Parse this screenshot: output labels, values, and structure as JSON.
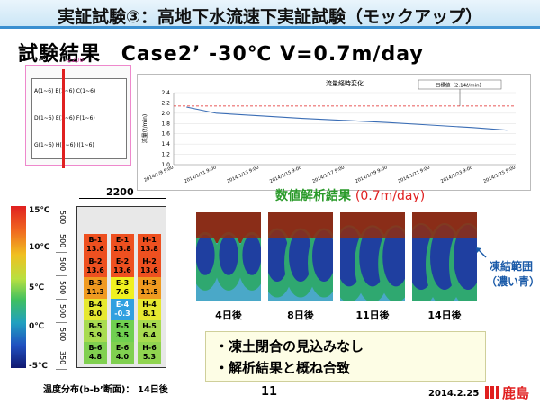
{
  "header": {
    "title": "実証試験③：高地下水流速下実証試験（モックアップ）",
    "subtitle_prefix": "試験結果",
    "subtitle_case": "Case2’  -30℃  V=0.7m/day"
  },
  "plan": {
    "width_label": "2200",
    "rows": [
      "A(1~6) B(1~6) C(1~6)",
      "D(1~6) E(1~6) F(1~6)",
      "G(1~6) H(1~6) I(1~6)"
    ]
  },
  "chart_data": {
    "type": "line",
    "title": "流量経時変化",
    "ylabel": "流量(ℓ/min)",
    "ylim": [
      1.0,
      2.4
    ],
    "yticks": [
      "2.4",
      "2.2",
      "2.0",
      "1.8",
      "1.6",
      "1.4",
      "1.2",
      "1.0"
    ],
    "xticks": [
      "2014/1/9 9:00",
      "2014/1/11 9:00",
      "2014/1/13 9:00",
      "2014/1/15 9:00",
      "2014/1/17 9:00",
      "2014/1/19 9:00",
      "2014/1/21 9:00",
      "2014/1/23 9:00",
      "2014/1/25 9:00"
    ],
    "target_label": "目標値（2.14ℓ/min）",
    "target_value": 2.14,
    "series": [
      {
        "x_index": [
          0.3,
          1,
          2,
          3,
          4,
          5,
          6,
          7,
          7.8
        ],
        "values": [
          2.12,
          2.0,
          1.95,
          1.9,
          1.86,
          1.82,
          1.77,
          1.72,
          1.67
        ]
      }
    ],
    "colors": {
      "line": "#3a6db5",
      "target": "#e02020"
    }
  },
  "analysis": {
    "title_part": "数値解析結果",
    "title_speed": "(0.7m/day)",
    "days": [
      "4日後",
      "8日後",
      "11日後",
      "14日後"
    ],
    "frozen_label_1": "凍結範囲",
    "frozen_label_2": "（濃い青）"
  },
  "temperature": {
    "width_label": "2200",
    "caption": "温度分布(b-b’断面)： 14日後",
    "legend": [
      "15℃",
      "10℃",
      "5℃",
      "0℃",
      "-5℃"
    ],
    "depths": [
      "500",
      "500",
      "500",
      "500",
      "500",
      "500",
      "350"
    ],
    "cells": [
      {
        "id": "B-1",
        "v": "13.6",
        "c": "#ee5020"
      },
      {
        "id": "E-1",
        "v": "13.8",
        "c": "#ee5020"
      },
      {
        "id": "H-1",
        "v": "13.8",
        "c": "#ee5020"
      },
      {
        "id": "B-2",
        "v": "13.6",
        "c": "#ee5020"
      },
      {
        "id": "E-2",
        "v": "13.6",
        "c": "#ee5020"
      },
      {
        "id": "H-2",
        "v": "13.6",
        "c": "#ee5020"
      },
      {
        "id": "B-3",
        "v": "11.3",
        "c": "#f09a20"
      },
      {
        "id": "E-3",
        "v": "7.6",
        "c": "#f0f020"
      },
      {
        "id": "H-3",
        "v": "11.5",
        "c": "#f09a20"
      },
      {
        "id": "B-4",
        "v": "8.0",
        "c": "#e6e830"
      },
      {
        "id": "E-4",
        "v": "-0.3",
        "c": "#30a0e0"
      },
      {
        "id": "H-4",
        "v": "8.1",
        "c": "#e6e830"
      },
      {
        "id": "B-5",
        "v": "5.9",
        "c": "#a8dc50"
      },
      {
        "id": "E-5",
        "v": "3.5",
        "c": "#70d050"
      },
      {
        "id": "H-5",
        "v": "6.4",
        "c": "#a8dc50"
      },
      {
        "id": "B-6",
        "v": "4.8",
        "c": "#80d050"
      },
      {
        "id": "E-6",
        "v": "4.0",
        "c": "#80d050"
      },
      {
        "id": "H-6",
        "v": "5.3",
        "c": "#90d450"
      }
    ]
  },
  "conclusions": [
    "・凍土閉合の見込みなし",
    "・解析結果と概ね合致"
  ],
  "footer": {
    "page": "11",
    "date": "2014.2.25",
    "company": "鹿島"
  }
}
